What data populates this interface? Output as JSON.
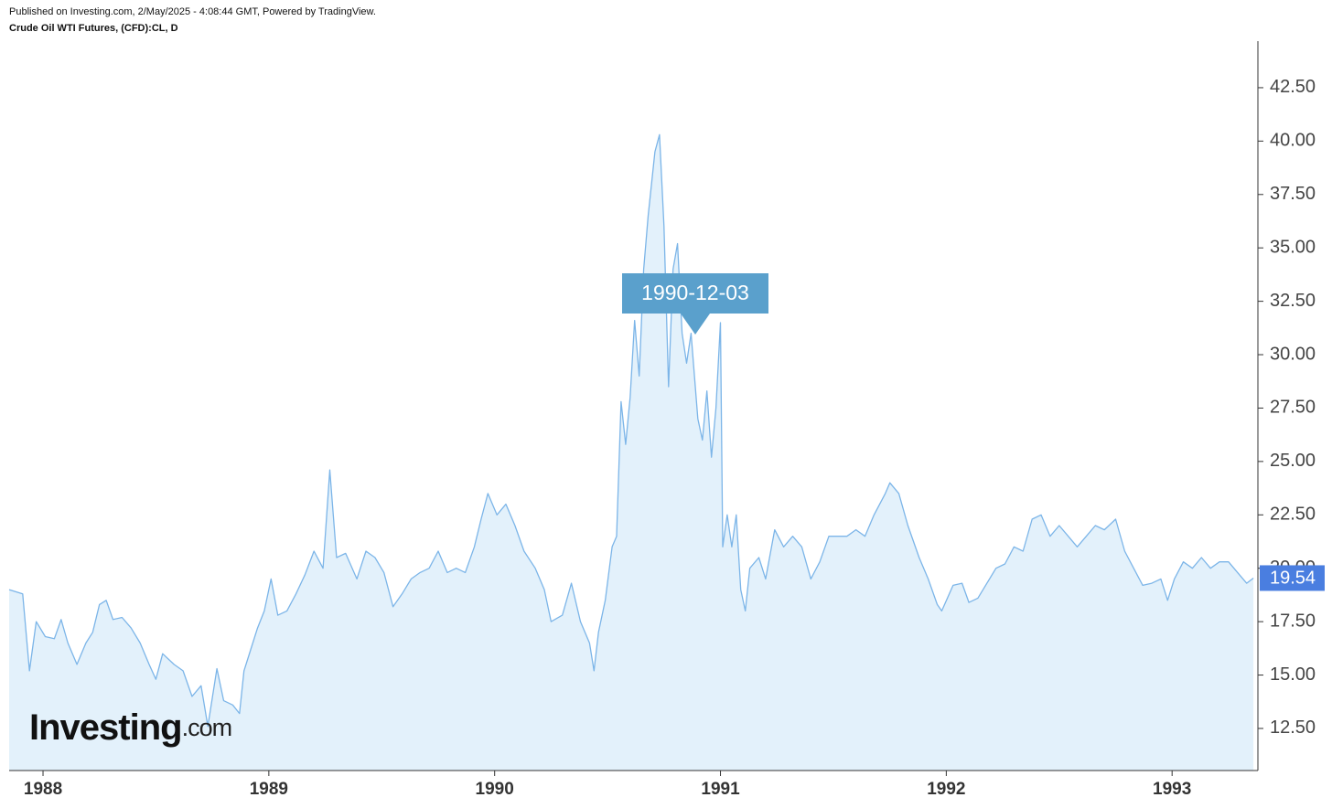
{
  "chart_data": {
    "type": "area",
    "header": "Published on Investing.com, 2/May/2025 - 4:08:44 GMT, Powered by TradingView.",
    "title": "Crude Oil WTI Futures, (CFD):CL, D",
    "annotation": "1990-12-03",
    "logo": {
      "brand": "Investing",
      "suffix": ".com"
    },
    "xlim": [
      1987.85,
      1993.38
    ],
    "xticks": [
      1988,
      1989,
      1990,
      1991,
      1992,
      1993
    ],
    "ylim": [
      10.53,
      44.68
    ],
    "yticks": [
      {
        "value": 12.5,
        "label": "12.50"
      },
      {
        "value": 15,
        "label": "15.00"
      },
      {
        "value": 17.5,
        "label": "17.50"
      },
      {
        "value": 20,
        "label": "20.00"
      },
      {
        "value": 22.5,
        "label": "22.50"
      },
      {
        "value": 25,
        "label": "25.00"
      },
      {
        "value": 27.5,
        "label": "27.50"
      },
      {
        "value": 30,
        "label": "30.00"
      },
      {
        "value": 32.5,
        "label": "32.50"
      },
      {
        "value": 35,
        "label": "35.00"
      },
      {
        "value": 37.5,
        "label": "37.50"
      },
      {
        "value": 40,
        "label": "40.00"
      },
      {
        "value": 42.5,
        "label": "42.50"
      }
    ],
    "grid": false,
    "series": [
      {
        "color": "#7cb5e8",
        "fill": "#e3f1fb",
        "label_color": "#4a7ee0",
        "x": [
          1987.85,
          1987.91,
          1987.94,
          1987.97,
          1988.01,
          1988.05,
          1988.08,
          1988.11,
          1988.15,
          1988.19,
          1988.22,
          1988.25,
          1988.28,
          1988.31,
          1988.35,
          1988.39,
          1988.43,
          1988.47,
          1988.5,
          1988.53,
          1988.58,
          1988.62,
          1988.66,
          1988.7,
          1988.73,
          1988.77,
          1988.8,
          1988.84,
          1988.87,
          1988.89,
          1988.92,
          1988.95,
          1988.98,
          1989.01,
          1989.04,
          1989.08,
          1989.12,
          1989.16,
          1989.2,
          1989.24,
          1989.27,
          1989.3,
          1989.34,
          1989.39,
          1989.43,
          1989.47,
          1989.51,
          1989.55,
          1989.59,
          1989.63,
          1989.67,
          1989.71,
          1989.75,
          1989.79,
          1989.83,
          1989.87,
          1989.91,
          1989.94,
          1989.97,
          1990.01,
          1990.05,
          1990.09,
          1990.13,
          1990.18,
          1990.22,
          1990.25,
          1990.3,
          1990.34,
          1990.38,
          1990.42,
          1990.44,
          1990.46,
          1990.49,
          1990.52,
          1990.54,
          1990.56,
          1990.58,
          1990.6,
          1990.62,
          1990.64,
          1990.66,
          1990.68,
          1990.71,
          1990.73,
          1990.75,
          1990.77,
          1990.79,
          1990.81,
          1990.83,
          1990.85,
          1990.87,
          1990.9,
          1990.92,
          1990.94,
          1990.96,
          1990.98,
          1991.0,
          1991.01,
          1991.03,
          1991.05,
          1991.07,
          1991.09,
          1991.11,
          1991.13,
          1991.17,
          1991.2,
          1991.24,
          1991.28,
          1991.32,
          1991.36,
          1991.4,
          1991.44,
          1991.48,
          1991.52,
          1991.56,
          1991.6,
          1991.64,
          1991.68,
          1991.73,
          1991.75,
          1991.79,
          1991.83,
          1991.88,
          1991.92,
          1991.96,
          1991.98,
          1992.03,
          1992.07,
          1992.1,
          1992.14,
          1992.18,
          1992.22,
          1992.26,
          1992.3,
          1992.34,
          1992.38,
          1992.42,
          1992.46,
          1992.5,
          1992.54,
          1992.58,
          1992.62,
          1992.66,
          1992.7,
          1992.75,
          1992.79,
          1992.83,
          1992.87,
          1992.91,
          1992.95,
          1992.98,
          1993.01,
          1993.05,
          1993.09,
          1993.13,
          1993.17,
          1993.21,
          1993.25,
          1993.29,
          1993.33,
          1993.36
        ],
        "values": [
          19.0,
          18.8,
          15.2,
          17.5,
          16.8,
          16.7,
          17.6,
          16.5,
          15.5,
          16.5,
          17.0,
          18.3,
          18.5,
          17.6,
          17.7,
          17.2,
          16.5,
          15.5,
          14.8,
          16.0,
          15.5,
          15.2,
          14.0,
          14.5,
          12.6,
          15.3,
          13.8,
          13.6,
          13.2,
          15.2,
          16.2,
          17.2,
          18.0,
          19.5,
          17.8,
          18.0,
          18.8,
          19.7,
          20.8,
          20.0,
          24.6,
          20.5,
          20.7,
          19.5,
          20.8,
          20.5,
          19.8,
          18.2,
          18.8,
          19.5,
          19.8,
          20.0,
          20.8,
          19.8,
          20.0,
          19.8,
          21.0,
          22.3,
          23.5,
          22.5,
          23.0,
          22.0,
          20.8,
          20.0,
          19.0,
          17.5,
          17.8,
          19.3,
          17.5,
          16.5,
          15.2,
          17.0,
          18.5,
          21.0,
          21.5,
          27.8,
          25.8,
          28.0,
          31.6,
          29.0,
          34.0,
          36.5,
          39.5,
          40.3,
          36.0,
          28.5,
          34.0,
          35.2,
          31.0,
          29.6,
          31.0,
          27.0,
          26.0,
          28.3,
          25.2,
          27.5,
          31.5,
          21.0,
          22.5,
          21.0,
          22.5,
          19.0,
          18.0,
          20.0,
          20.5,
          19.5,
          21.8,
          21.0,
          21.5,
          21.0,
          19.5,
          20.3,
          21.5,
          21.5,
          21.5,
          21.8,
          21.5,
          22.5,
          23.5,
          24.0,
          23.5,
          22.0,
          20.5,
          19.5,
          18.3,
          18.0,
          19.2,
          19.3,
          18.4,
          18.6,
          19.3,
          20.0,
          20.2,
          21.0,
          20.8,
          22.3,
          22.5,
          21.5,
          22.0,
          21.5,
          21.0,
          21.5,
          22.0,
          21.8,
          22.3,
          20.8,
          20.0,
          19.2,
          19.3,
          19.5,
          18.5,
          19.5,
          20.3,
          20.0,
          20.5,
          20.0,
          20.3,
          20.3,
          19.8,
          19.3,
          19.54
        ]
      }
    ]
  }
}
